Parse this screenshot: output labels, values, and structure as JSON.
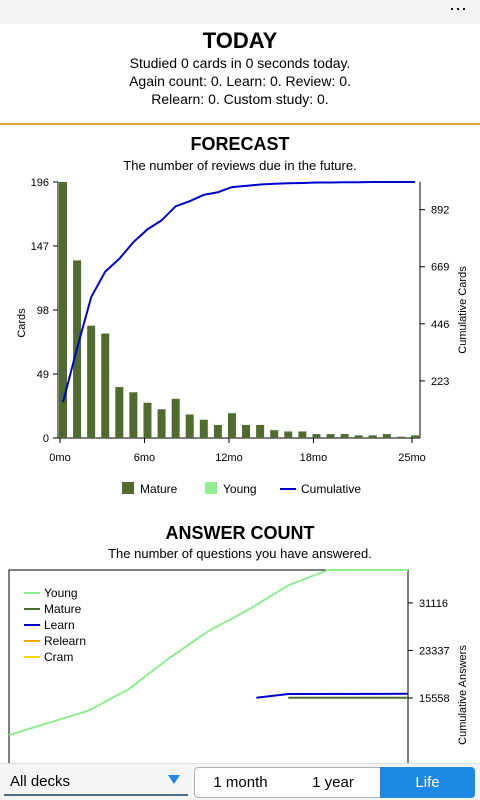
{
  "menu": {
    "icon": "more-dots-icon",
    "label": "⋯"
  },
  "today": {
    "title": "TODAY",
    "line1": "Studied 0 cards in 0 seconds today.",
    "line2": "Again count: 0. Learn: 0. Review: 0.",
    "line3": "Relearn: 0. Custom study: 0."
  },
  "forecast": {
    "title": "FORECAST",
    "subtitle": "The number of reviews due in the future.",
    "ylabel": "Cards",
    "y2label": "Cumulative Cards",
    "yticks": [
      "196",
      "147",
      "98",
      "49",
      "0"
    ],
    "y2ticks": [
      "892",
      "669",
      "446",
      "223"
    ],
    "xticks": [
      "0mo",
      "6mo",
      "12mo",
      "18mo",
      "25mo"
    ],
    "legend": {
      "mature": "Mature",
      "young": "Young",
      "cumulative": "Cumulative"
    }
  },
  "answer": {
    "title": "ANSWER COUNT",
    "subtitle": "The number of questions you have answered.",
    "y2label": "Cumulative Answers",
    "y2ticks": [
      "31116",
      "23337",
      "15558"
    ],
    "legend": {
      "young": "Young",
      "mature": "Mature",
      "learn": "Learn",
      "relearn": "Relearn",
      "cram": "Cram"
    }
  },
  "bottom": {
    "deck": "All decks",
    "ranges": [
      "1 month",
      "1 year",
      "Life"
    ],
    "active": "Life"
  },
  "colors": {
    "mature": "#4f6b2e",
    "young": "#90ee90",
    "cumulative": "#0000cc",
    "learn": "#0000cc",
    "relearn": "#ffa500",
    "cram": "#ffd700",
    "separator": "#e8a33b",
    "accent": "#1e88e5"
  },
  "chart_data": [
    {
      "type": "bar",
      "title": "FORECAST",
      "xlabel": "",
      "ylabel": "Cards",
      "y2label": "Cumulative Cards",
      "x_unit": "months",
      "xlim": [
        0,
        25
      ],
      "ylim": [
        0,
        196
      ],
      "y2lim": [
        0,
        1000
      ],
      "series": [
        {
          "name": "Mature",
          "x": [
            0,
            1,
            2,
            3,
            4,
            5,
            6,
            7,
            8,
            9,
            10,
            11,
            12,
            13,
            14,
            15,
            16,
            17,
            18,
            19,
            20,
            21,
            22,
            23,
            24,
            25
          ],
          "values": [
            196,
            136,
            86,
            80,
            39,
            35,
            27,
            22,
            30,
            18,
            14,
            10,
            19,
            10,
            10,
            6,
            5,
            5,
            3,
            3,
            3,
            2,
            2,
            3,
            1,
            2
          ]
        },
        {
          "name": "Young",
          "values": []
        },
        {
          "name": "Cumulative",
          "x": [
            0,
            1,
            2,
            3,
            4,
            5,
            6,
            7,
            8,
            9,
            10,
            11,
            12,
            13,
            14,
            15,
            16,
            17,
            18,
            19,
            20,
            21,
            22,
            23,
            24,
            25
          ],
          "values": [
            140,
            350,
            550,
            650,
            700,
            765,
            815,
            850,
            905,
            925,
            950,
            960,
            980,
            985,
            990,
            993,
            995,
            996,
            998,
            998,
            999,
            999,
            1000,
            1000,
            1000,
            1000
          ]
        }
      ],
      "legend": "bottom"
    },
    {
      "type": "line",
      "title": "ANSWER COUNT",
      "y2label": "Cumulative Answers",
      "y2_ticks": [
        15558,
        23337,
        31116
      ],
      "series": [
        {
          "name": "Young",
          "points": [
            [
              0.0,
              9500
            ],
            [
              0.2,
              13500
            ],
            [
              0.3,
              17000
            ],
            [
              0.4,
              22000
            ],
            [
              0.5,
              26500
            ],
            [
              0.6,
              30000
            ],
            [
              0.7,
              34000
            ],
            [
              0.8,
              36500
            ],
            [
              1.0,
              36500
            ]
          ]
        },
        {
          "name": "Mature",
          "points": [
            [
              0.7,
              15600
            ],
            [
              1.0,
              15600
            ]
          ]
        },
        {
          "name": "Learn",
          "points": [
            [
              0.62,
              15600
            ],
            [
              0.7,
              16200
            ],
            [
              1.0,
              16250
            ]
          ]
        },
        {
          "name": "Relearn",
          "points": []
        },
        {
          "name": "Cram",
          "points": []
        }
      ],
      "legend": "top-left"
    }
  ]
}
